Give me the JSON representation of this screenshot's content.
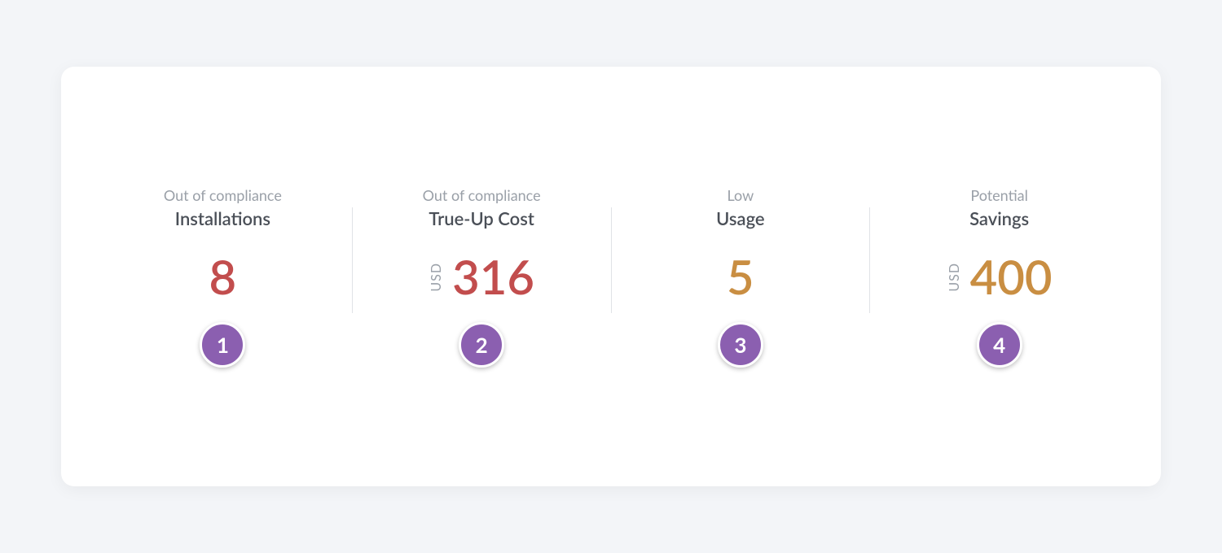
{
  "page": {
    "background_color": "#f3f5f8",
    "card_background": "#ffffff",
    "card_border_radius": 16,
    "subtitle_color": "#9aa0a8",
    "title_color": "#4a4f57",
    "divider_color": "#e0e2e6",
    "badge_color": "#8b5fb0",
    "red_value_color": "#c24d4d",
    "orange_value_color": "#c98e42",
    "value_fontsize": 58,
    "title_fontsize": 22,
    "subtitle_fontsize": 18,
    "badge_fontsize": 26
  },
  "metrics": [
    {
      "subtitle": "Out of compliance",
      "title": "Installations",
      "value": "8",
      "value_color_class": "value-red",
      "currency": null,
      "badge": "1"
    },
    {
      "subtitle": "Out of compliance",
      "title": "True-Up Cost",
      "value": "316",
      "value_color_class": "value-red",
      "currency": "USD",
      "badge": "2"
    },
    {
      "subtitle": "Low",
      "title": "Usage",
      "value": "5",
      "value_color_class": "value-orange",
      "currency": null,
      "badge": "3"
    },
    {
      "subtitle": "Potential",
      "title": "Savings",
      "value": "400",
      "value_color_class": "value-orange",
      "currency": "USD",
      "badge": "4"
    }
  ]
}
